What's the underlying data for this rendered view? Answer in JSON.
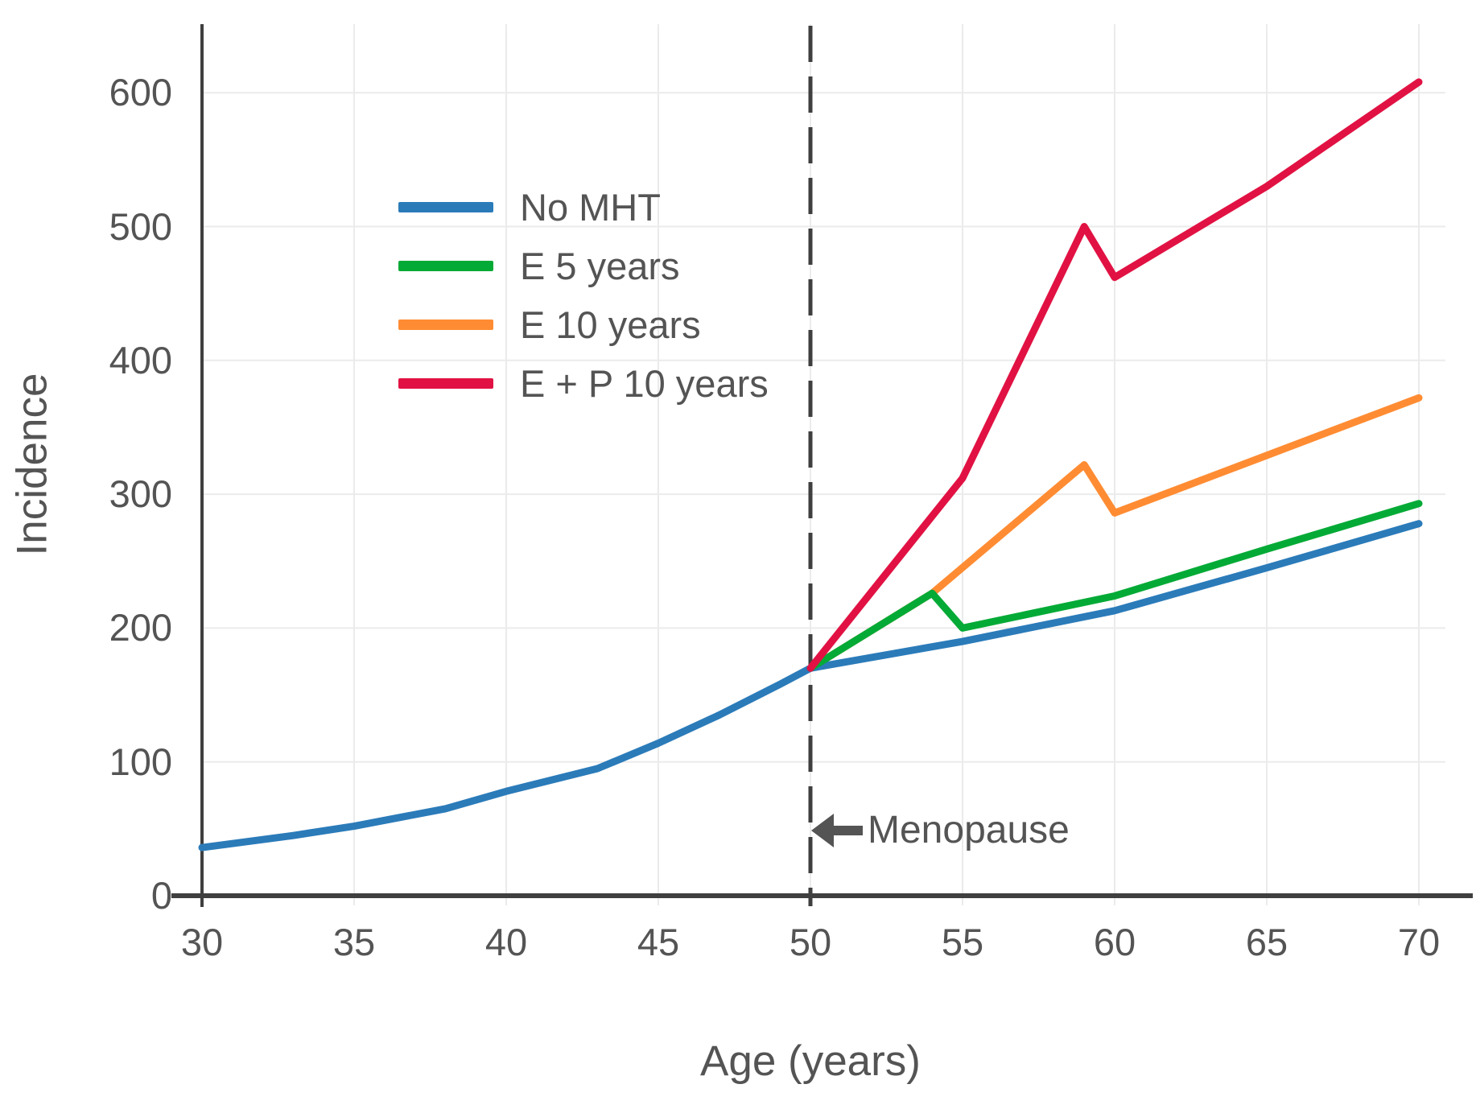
{
  "chart_data": {
    "type": "line",
    "title": "",
    "xlabel": "Age (years)",
    "ylabel": "Incidence",
    "x_ticks": [
      "30",
      "35",
      "40",
      "45",
      "50",
      "55",
      "60",
      "65",
      "70"
    ],
    "y_ticks": [
      "0",
      "100",
      "200",
      "300",
      "400",
      "500",
      "600"
    ],
    "x_range": [
      30,
      70.9
    ],
    "y_range": [
      0,
      651
    ],
    "grid": true,
    "legend_position": "upper-left-inside",
    "menopause_line": {
      "x": 50,
      "style": "dashed"
    },
    "annotations": [
      {
        "text": "Menopause",
        "x": 50,
        "y": 50,
        "arrow": "left"
      }
    ],
    "series": [
      {
        "name": "No MHT",
        "color": "#2b7bb9",
        "points": [
          [
            30,
            36
          ],
          [
            33,
            45
          ],
          [
            35,
            52
          ],
          [
            38,
            65
          ],
          [
            40,
            78
          ],
          [
            43,
            95
          ],
          [
            45,
            114
          ],
          [
            47,
            135
          ],
          [
            49,
            158
          ],
          [
            50,
            170
          ],
          [
            55,
            190
          ],
          [
            60,
            213
          ],
          [
            65,
            245
          ],
          [
            70,
            278
          ]
        ]
      },
      {
        "name": "E 5 years",
        "color": "#04aa36",
        "points": [
          [
            50,
            170
          ],
          [
            54,
            226
          ],
          [
            55,
            200
          ],
          [
            60,
            224
          ],
          [
            65,
            259
          ],
          [
            70,
            293
          ]
        ]
      },
      {
        "name": "E 10 years",
        "color": "#ff8c33",
        "points": [
          [
            50,
            170
          ],
          [
            54,
            226
          ],
          [
            59,
            322
          ],
          [
            60,
            286
          ],
          [
            65,
            329
          ],
          [
            70,
            372
          ]
        ]
      },
      {
        "name": "E + P 10 years",
        "color": "#e11243",
        "points": [
          [
            50,
            170
          ],
          [
            55,
            312
          ],
          [
            59,
            500
          ],
          [
            60,
            462
          ],
          [
            65,
            530
          ],
          [
            70,
            608
          ]
        ]
      }
    ]
  },
  "style_colors": {
    "grid": "#ebebeb",
    "axis": "#3f3f3f",
    "text": "#545454",
    "background": "#ffffff"
  }
}
